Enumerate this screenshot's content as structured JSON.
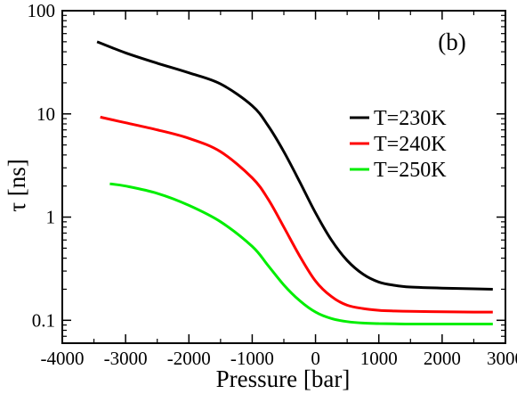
{
  "chart_data": {
    "type": "line",
    "panel_label": "(b)",
    "xlabel": "Pressure [bar]",
    "ylabel": "τ [ns]",
    "xlim": [
      -4000,
      3000
    ],
    "ylim": [
      0.06,
      100
    ],
    "yscale": "log",
    "xticks": [
      -4000,
      -3000,
      -2000,
      -1000,
      0,
      1000,
      2000,
      3000
    ],
    "xtick_labels": [
      "-4000",
      "-3000",
      "-2000",
      "-1000",
      "0",
      "1000",
      "2000",
      "3000"
    ],
    "yticks": [
      0.1,
      1,
      10,
      100
    ],
    "ytick_labels": [
      "0.1",
      "1",
      "10",
      "100"
    ],
    "grid": false,
    "legend_position": "right",
    "series": [
      {
        "name": "T=230K",
        "color": "#000000",
        "x": [
          -3450,
          -3000,
          -2500,
          -2000,
          -1500,
          -1000,
          -750,
          -500,
          -250,
          0,
          250,
          500,
          750,
          1000,
          1250,
          1500,
          2000,
          2500,
          2800
        ],
        "y": [
          50,
          39,
          31,
          25,
          19.5,
          12,
          7.7,
          4.3,
          2.2,
          1.1,
          0.6,
          0.38,
          0.28,
          0.235,
          0.218,
          0.21,
          0.205,
          0.202,
          0.2
        ]
      },
      {
        "name": "T=240K",
        "color": "#ff0000",
        "x": [
          -3400,
          -3000,
          -2500,
          -2000,
          -1500,
          -1000,
          -750,
          -500,
          -250,
          0,
          250,
          500,
          750,
          1000,
          1250,
          1500,
          2000,
          2500,
          2800
        ],
        "y": [
          9.3,
          8.2,
          7.0,
          5.8,
          4.3,
          2.4,
          1.5,
          0.8,
          0.42,
          0.24,
          0.17,
          0.14,
          0.13,
          0.125,
          0.123,
          0.122,
          0.121,
          0.12,
          0.12
        ]
      },
      {
        "name": "T=250K",
        "color": "#00ee00",
        "x": [
          -3250,
          -3000,
          -2500,
          -2000,
          -1500,
          -1000,
          -750,
          -500,
          -250,
          0,
          250,
          500,
          750,
          1000,
          1250,
          1500,
          2000,
          2500,
          2800
        ],
        "y": [
          2.1,
          2.0,
          1.7,
          1.3,
          0.9,
          0.52,
          0.34,
          0.22,
          0.155,
          0.12,
          0.104,
          0.097,
          0.094,
          0.093,
          0.0925,
          0.092,
          0.092,
          0.092,
          0.092
        ]
      }
    ]
  }
}
